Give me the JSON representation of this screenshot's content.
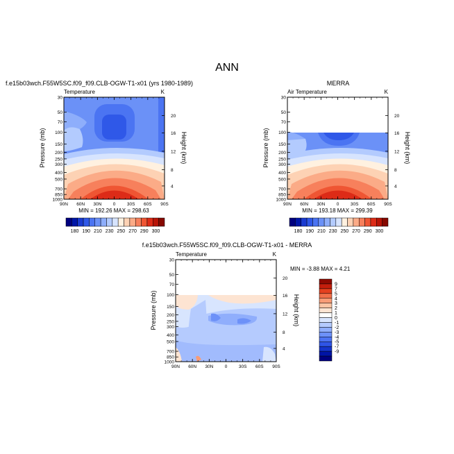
{
  "page_title": "ANN",
  "panels": [
    {
      "id": "model",
      "title": "f.e15b03wch.F55W5SC.f09_f09.CLB-OGW-T1-x01 (yrs 1980-1989)",
      "left_label": "Temperature",
      "right_label": "K",
      "stats": "MIN = 192.26   MAX = 298.63",
      "ylabel": "Pressure (mb)",
      "ylabel_right": "Height (km)"
    },
    {
      "id": "obs",
      "title": "MERRA",
      "left_label": "Air Temperature",
      "right_label": "K",
      "stats": "MIN = 193.18   MAX = 299.39",
      "ylabel": "Pressure (mb)",
      "ylabel_right": "Height (km)"
    },
    {
      "id": "diff",
      "title": "f.e15b03wch.F55W5SC.f09_f09.CLB-OGW-T1-x01 - MERRA",
      "left_label": "Temperature",
      "right_label": "K",
      "stats": "MIN = -3.88   MAX = 4.21",
      "ylabel": "Pressure (mb)",
      "ylabel_right": "Height (km)"
    }
  ],
  "axes": {
    "x_ticks": [
      "90N",
      "60N",
      "30N",
      "0",
      "30S",
      "60S",
      "90S"
    ],
    "p_ticks": [
      "30",
      "50",
      "70",
      "100",
      "150",
      "200",
      "250",
      "300",
      "400",
      "500",
      "700",
      "850",
      "1000"
    ],
    "km_ticks_top": [
      "20",
      "16",
      "12",
      "8",
      "4"
    ],
    "km_ticks_diff": [
      "20",
      "16",
      "12",
      "8",
      "4"
    ]
  },
  "colors": {
    "temp_scale": [
      "#00007f",
      "#0016a8",
      "#1a3ad0",
      "#2f58e8",
      "#4b74f2",
      "#6b91f7",
      "#8eaefb",
      "#b3cbfe",
      "#d7e4fe",
      "#fff1e0",
      "#fdd2b4",
      "#fbab87",
      "#f7805c",
      "#ef5533",
      "#dd2b17",
      "#b81407",
      "#860800"
    ],
    "diff_scale": [
      "#00007f",
      "#0014a6",
      "#1535cc",
      "#2f55e6",
      "#4d73f2",
      "#6d91f8",
      "#90aefc",
      "#b5cbfe",
      "#d8e5fe",
      "#ffffff",
      "#fde4d2",
      "#fbc4a4",
      "#f89c77",
      "#f1704a",
      "#e4411f",
      "#c41e0c",
      "#8f0a01"
    ]
  },
  "chart_data": [
    {
      "type": "heatmap",
      "panel": "model",
      "title": "f.e15b03wch.F55W5SC.f09_f09.CLB-OGW-T1-x01 (yrs 1980-1989)",
      "xlabel": "",
      "ylabel": "Pressure (mb)",
      "x": [
        "90N",
        "60N",
        "30N",
        "0",
        "30S",
        "60S",
        "90S"
      ],
      "y_range_mb": [
        30,
        1000
      ],
      "z_range": [
        192.26,
        298.63
      ],
      "colorbar_labels": [
        "180",
        "190",
        "210",
        "230",
        "250",
        "270",
        "290",
        "300"
      ]
    },
    {
      "type": "heatmap",
      "panel": "obs",
      "title": "MERRA",
      "xlabel": "",
      "ylabel": "Pressure (mb)",
      "x": [
        "90N",
        "60N",
        "30N",
        "0",
        "30S",
        "60S",
        "90S"
      ],
      "y_range_mb": [
        30,
        1000
      ],
      "z_range": [
        193.18,
        299.39
      ],
      "colorbar_labels": [
        "180",
        "190",
        "210",
        "230",
        "250",
        "270",
        "290",
        "300"
      ]
    },
    {
      "type": "heatmap",
      "panel": "diff",
      "title": "f.e15b03wch.F55W5SC.f09_f09.CLB-OGW-T1-x01 - MERRA",
      "xlabel": "",
      "ylabel": "Pressure (mb)",
      "x": [
        "90N",
        "60N",
        "30N",
        "0",
        "30S",
        "60S",
        "90S"
      ],
      "y_range_mb": [
        30,
        1000
      ],
      "z_range": [
        -3.88,
        4.21
      ],
      "colorbar_labels": [
        "9",
        "7",
        "5",
        "4",
        "3",
        "2",
        "1",
        "0",
        "-1",
        "-2",
        "-3",
        "-4",
        "-5",
        "-7",
        "-9"
      ]
    }
  ]
}
